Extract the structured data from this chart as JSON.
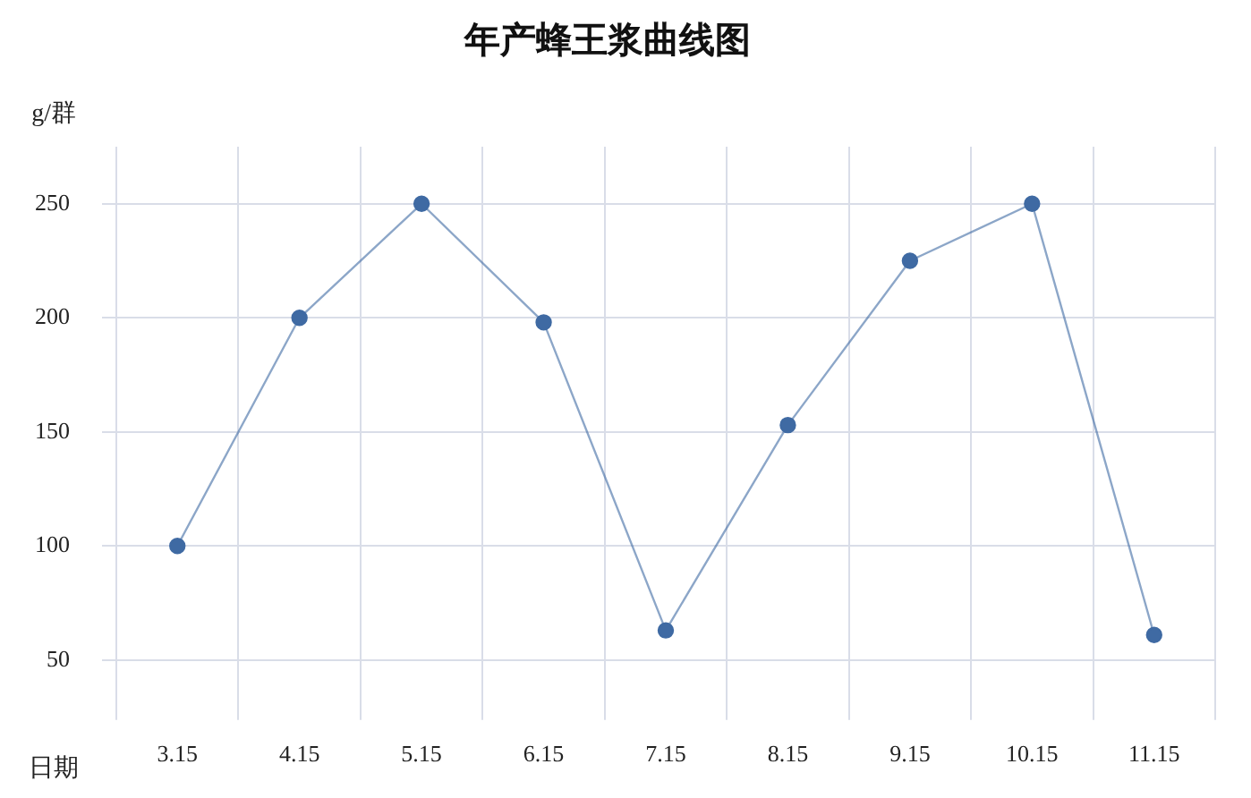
{
  "chart_data": {
    "type": "line",
    "title": "年产蜂王浆曲线图",
    "xlabel": "日期",
    "ylabel": "g/群",
    "categories": [
      "3.15",
      "4.15",
      "5.15",
      "6.15",
      "7.15",
      "8.15",
      "9.15",
      "10.15",
      "11.15"
    ],
    "series": [
      {
        "color": "#3f6aa3",
        "values": [
          100,
          200,
          250,
          198,
          63,
          153,
          225,
          250,
          61
        ]
      }
    ],
    "ylim": [
      30,
      275
    ],
    "yticks": [
      50,
      100,
      150,
      200,
      250
    ],
    "grid": true,
    "legend": false,
    "marker": "circle",
    "line_style": "solid"
  }
}
